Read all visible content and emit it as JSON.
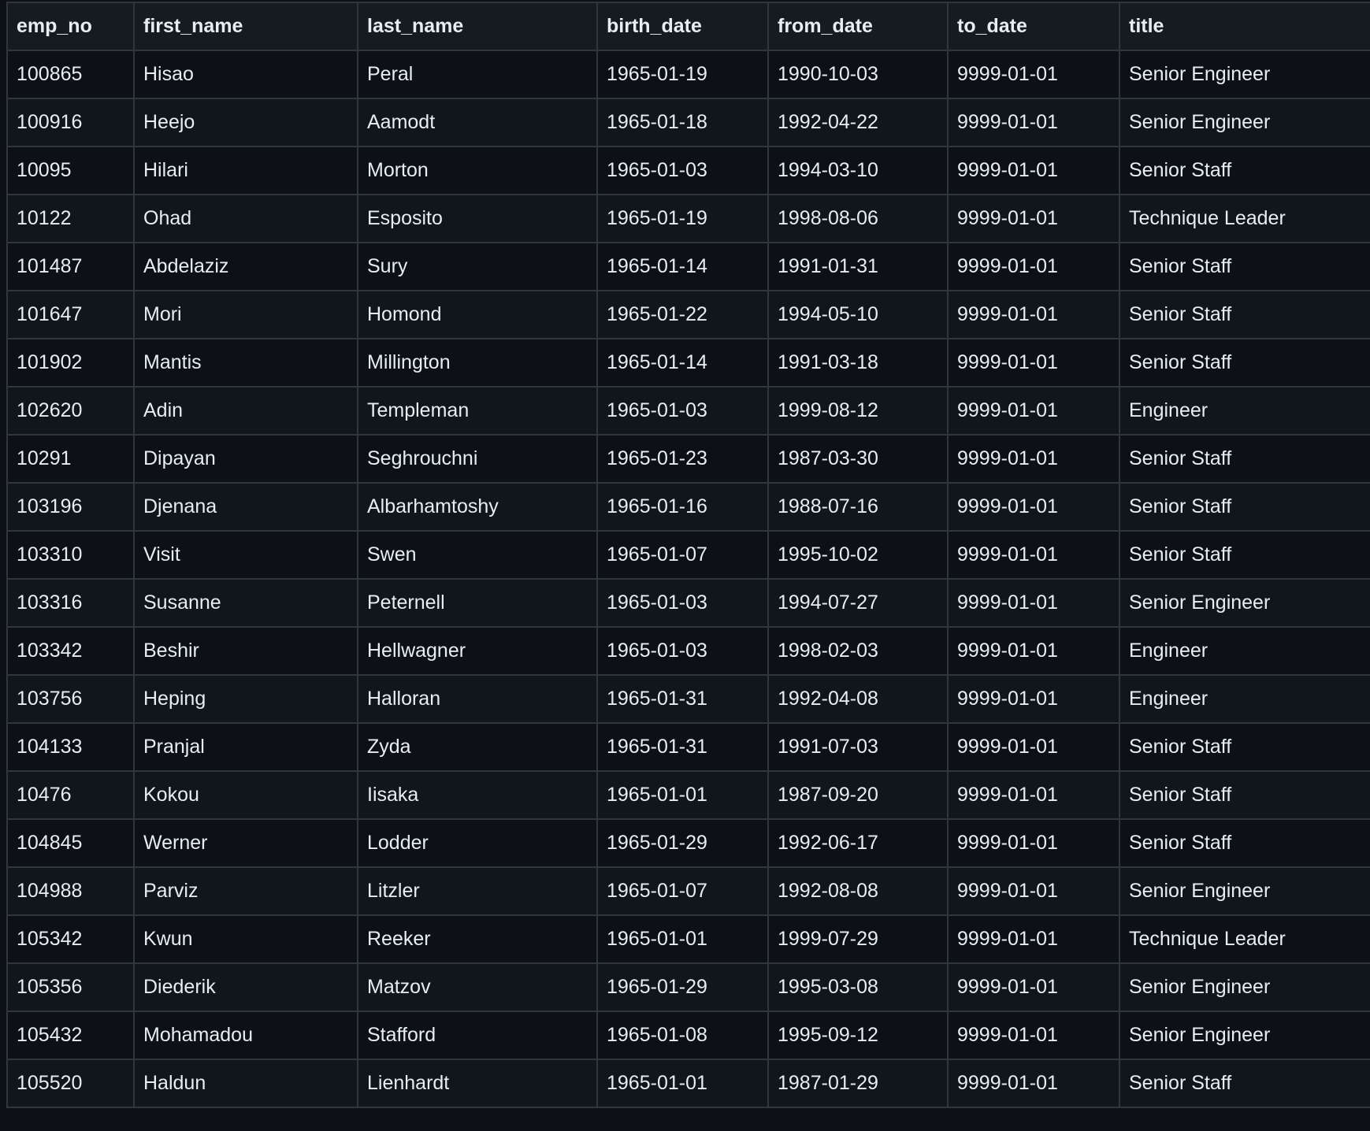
{
  "table": {
    "columns": [
      "emp_no",
      "first_name",
      "last_name",
      "birth_date",
      "from_date",
      "to_date",
      "title"
    ],
    "rows": [
      [
        "100865",
        "Hisao",
        "Peral",
        "1965-01-19",
        "1990-10-03",
        "9999-01-01",
        "Senior Engineer"
      ],
      [
        "100916",
        "Heejo",
        "Aamodt",
        "1965-01-18",
        "1992-04-22",
        "9999-01-01",
        "Senior Engineer"
      ],
      [
        "10095",
        "Hilari",
        "Morton",
        "1965-01-03",
        "1994-03-10",
        "9999-01-01",
        "Senior Staff"
      ],
      [
        "10122",
        "Ohad",
        "Esposito",
        "1965-01-19",
        "1998-08-06",
        "9999-01-01",
        "Technique Leader"
      ],
      [
        "101487",
        "Abdelaziz",
        "Sury",
        "1965-01-14",
        "1991-01-31",
        "9999-01-01",
        "Senior Staff"
      ],
      [
        "101647",
        "Mori",
        "Homond",
        "1965-01-22",
        "1994-05-10",
        "9999-01-01",
        "Senior Staff"
      ],
      [
        "101902",
        "Mantis",
        "Millington",
        "1965-01-14",
        "1991-03-18",
        "9999-01-01",
        "Senior Staff"
      ],
      [
        "102620",
        "Adin",
        "Templeman",
        "1965-01-03",
        "1999-08-12",
        "9999-01-01",
        "Engineer"
      ],
      [
        "10291",
        "Dipayan",
        "Seghrouchni",
        "1965-01-23",
        "1987-03-30",
        "9999-01-01",
        "Senior Staff"
      ],
      [
        "103196",
        "Djenana",
        "Albarhamtoshy",
        "1965-01-16",
        "1988-07-16",
        "9999-01-01",
        "Senior Staff"
      ],
      [
        "103310",
        "Visit",
        "Swen",
        "1965-01-07",
        "1995-10-02",
        "9999-01-01",
        "Senior Staff"
      ],
      [
        "103316",
        "Susanne",
        "Peternell",
        "1965-01-03",
        "1994-07-27",
        "9999-01-01",
        "Senior Engineer"
      ],
      [
        "103342",
        "Beshir",
        "Hellwagner",
        "1965-01-03",
        "1998-02-03",
        "9999-01-01",
        "Engineer"
      ],
      [
        "103756",
        "Heping",
        "Halloran",
        "1965-01-31",
        "1992-04-08",
        "9999-01-01",
        "Engineer"
      ],
      [
        "104133",
        "Pranjal",
        "Zyda",
        "1965-01-31",
        "1991-07-03",
        "9999-01-01",
        "Senior Staff"
      ],
      [
        "10476",
        "Kokou",
        "Iisaka",
        "1965-01-01",
        "1987-09-20",
        "9999-01-01",
        "Senior Staff"
      ],
      [
        "104845",
        "Werner",
        "Lodder",
        "1965-01-29",
        "1992-06-17",
        "9999-01-01",
        "Senior Staff"
      ],
      [
        "104988",
        "Parviz",
        "Litzler",
        "1965-01-07",
        "1992-08-08",
        "9999-01-01",
        "Senior Engineer"
      ],
      [
        "105342",
        "Kwun",
        "Reeker",
        "1965-01-01",
        "1999-07-29",
        "9999-01-01",
        "Technique Leader"
      ],
      [
        "105356",
        "Diederik",
        "Matzov",
        "1965-01-29",
        "1995-03-08",
        "9999-01-01",
        "Senior Engineer"
      ],
      [
        "105432",
        "Mohamadou",
        "Stafford",
        "1965-01-08",
        "1995-09-12",
        "9999-01-01",
        "Senior Engineer"
      ],
      [
        "105520",
        "Haldun",
        "Lienhardt",
        "1965-01-01",
        "1987-01-29",
        "9999-01-01",
        "Senior Staff"
      ]
    ]
  }
}
